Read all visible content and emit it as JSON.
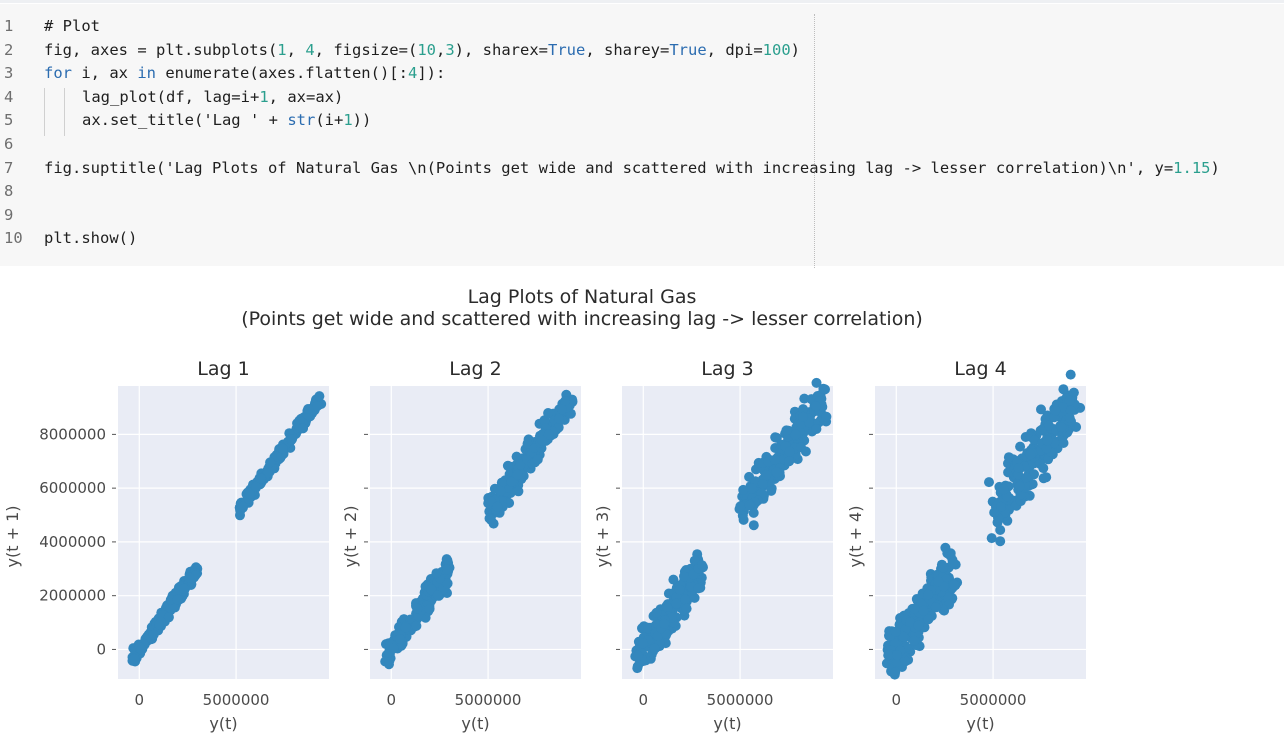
{
  "code_cell": {
    "lines": [
      {
        "n": "1",
        "text": "# Plot"
      },
      {
        "n": "2",
        "text": "fig, axes = plt.subplots(1, 4, figsize=(10,3), sharex=True, sharey=True, dpi=100)"
      },
      {
        "n": "3",
        "text": "for i, ax in enumerate(axes.flatten()[:4]):"
      },
      {
        "n": "4",
        "text": "lag_plot(df, lag=i+1, ax=ax)",
        "indent": true
      },
      {
        "n": "5",
        "text": "ax.set_title('Lag ' + str(i+1))",
        "indent": true
      },
      {
        "n": "6",
        "text": ""
      },
      {
        "n": "7",
        "text": "fig.suptitle('Lag Plots of Natural Gas \\n(Points get wide and scattered with increasing lag -> lesser correlation)\\n', y=1.15)"
      },
      {
        "n": "8",
        "text": ""
      },
      {
        "n": "9",
        "text": ""
      },
      {
        "n": "10",
        "text": "plt.show()"
      }
    ],
    "colors": {
      "keyword": "#2b6cb0",
      "number": "#2b9f8e"
    }
  },
  "figure": {
    "suptitle_line1": "Lag Plots of Natural Gas",
    "suptitle_line2": "(Points get wide and scattered with increasing lag -> lesser correlation)",
    "axes_bg": "#e9ecf5",
    "grid_color": "#ffffff",
    "point_color": "#3387bd"
  },
  "chart_data": [
    {
      "type": "scatter",
      "title": "Lag 1",
      "xlabel": "y(t)",
      "ylabel": "y(t + 1)",
      "xlim": [
        -1100000,
        9800000
      ],
      "ylim": [
        -1100000,
        9800000
      ],
      "xticks": [
        0,
        5000000
      ],
      "xticklabels": [
        "0",
        "5000000"
      ],
      "yticks": [
        0,
        2000000,
        4000000,
        6000000,
        8000000
      ],
      "yticklabels": [
        "0",
        "2000000",
        "4000000",
        "6000000",
        "8000000"
      ],
      "grid": true,
      "clusters": [
        {
          "x_range": [
            -300000,
            3000000
          ],
          "slope": 1.0,
          "spread": 220000
        },
        {
          "x_range": [
            5200000,
            9300000
          ],
          "slope": 1.0,
          "spread": 200000
        }
      ]
    },
    {
      "type": "scatter",
      "title": "Lag 2",
      "xlabel": "y(t)",
      "ylabel": "y(t + 2)",
      "xlim": [
        -1100000,
        9800000
      ],
      "ylim": [
        -1100000,
        9800000
      ],
      "xticks": [
        0,
        5000000
      ],
      "xticklabels": [
        "0",
        "5000000"
      ],
      "grid": true,
      "clusters": [
        {
          "x_range": [
            -300000,
            3000000
          ],
          "slope": 1.0,
          "spread": 450000
        },
        {
          "x_range": [
            5100000,
            9300000
          ],
          "slope": 1.0,
          "spread": 500000
        }
      ]
    },
    {
      "type": "scatter",
      "title": "Lag 3",
      "xlabel": "y(t)",
      "ylabel": "y(t + 3)",
      "xlim": [
        -1100000,
        9800000
      ],
      "ylim": [
        -1100000,
        9800000
      ],
      "xticks": [
        0,
        5000000
      ],
      "xticklabels": [
        "0",
        "5000000"
      ],
      "grid": true,
      "clusters": [
        {
          "x_range": [
            -300000,
            3000000
          ],
          "slope": 1.0,
          "spread": 650000
        },
        {
          "x_range": [
            5100000,
            9300000
          ],
          "slope": 1.0,
          "spread": 750000
        }
      ]
    },
    {
      "type": "scatter",
      "title": "Lag 4",
      "xlabel": "y(t)",
      "ylabel": "y(t + 4)",
      "xlim": [
        -1100000,
        9800000
      ],
      "ylim": [
        -1100000,
        9800000
      ],
      "xticks": [
        0,
        5000000
      ],
      "xticklabels": [
        "0",
        "5000000"
      ],
      "grid": true,
      "clusters": [
        {
          "x_range": [
            -300000,
            3000000
          ],
          "slope": 1.0,
          "spread": 850000
        },
        {
          "x_range": [
            5100000,
            9300000
          ],
          "slope": 1.0,
          "spread": 950000
        }
      ]
    }
  ]
}
